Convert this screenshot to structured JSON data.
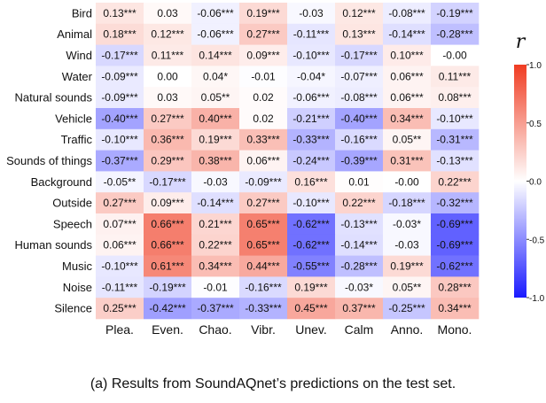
{
  "chart_data": {
    "type": "heatmap",
    "rows": [
      "Bird",
      "Animal",
      "Wind",
      "Water",
      "Natural sounds",
      "Vehicle",
      "Traffic",
      "Sounds of things",
      "Background",
      "Outside",
      "Speech",
      "Human sounds",
      "Music",
      "Noise",
      "Silence"
    ],
    "columns": [
      "Plea.",
      "Even.",
      "Chao.",
      "Vibr.",
      "Unev.",
      "Calm",
      "Anno.",
      "Mono."
    ],
    "values": [
      [
        0.13,
        0.03,
        -0.06,
        0.19,
        -0.03,
        0.12,
        -0.08,
        -0.19
      ],
      [
        0.18,
        0.12,
        -0.06,
        0.27,
        -0.11,
        0.13,
        -0.14,
        -0.28
      ],
      [
        -0.17,
        0.11,
        0.14,
        0.09,
        -0.1,
        -0.17,
        0.1,
        -0.0
      ],
      [
        -0.09,
        0.0,
        0.04,
        -0.01,
        -0.04,
        -0.07,
        0.06,
        0.11
      ],
      [
        -0.09,
        0.03,
        0.05,
        0.02,
        -0.06,
        -0.08,
        0.06,
        0.08
      ],
      [
        -0.4,
        0.27,
        0.4,
        0.02,
        -0.21,
        -0.4,
        0.34,
        -0.1
      ],
      [
        -0.1,
        0.36,
        0.19,
        0.33,
        -0.33,
        -0.16,
        0.05,
        -0.31
      ],
      [
        -0.37,
        0.29,
        0.38,
        0.06,
        -0.24,
        -0.39,
        0.31,
        -0.13
      ],
      [
        -0.05,
        -0.17,
        -0.03,
        -0.09,
        0.16,
        0.01,
        -0.0,
        0.22
      ],
      [
        0.27,
        0.09,
        -0.14,
        0.27,
        -0.1,
        0.22,
        -0.18,
        -0.32
      ],
      [
        0.07,
        0.66,
        0.21,
        0.65,
        -0.62,
        -0.13,
        -0.03,
        -0.69
      ],
      [
        0.06,
        0.66,
        0.22,
        0.65,
        -0.62,
        -0.14,
        -0.03,
        -0.69
      ],
      [
        -0.1,
        0.61,
        0.34,
        0.44,
        -0.55,
        -0.28,
        0.19,
        -0.62
      ],
      [
        -0.11,
        -0.19,
        -0.01,
        -0.16,
        0.19,
        -0.03,
        0.05,
        0.28
      ],
      [
        0.25,
        -0.42,
        -0.37,
        -0.33,
        0.45,
        0.37,
        -0.25,
        0.34
      ]
    ],
    "cell_labels": [
      [
        "0.13***",
        "0.03",
        "-0.06***",
        "0.19***",
        "-0.03",
        "0.12***",
        "-0.08***",
        "-0.19***"
      ],
      [
        "0.18***",
        "0.12***",
        "-0.06***",
        "0.27***",
        "-0.11***",
        "0.13***",
        "-0.14***",
        "-0.28***"
      ],
      [
        "-0.17***",
        "0.11***",
        "0.14***",
        "0.09***",
        "-0.10***",
        "-0.17***",
        "0.10***",
        "-0.00"
      ],
      [
        "-0.09***",
        "0.00",
        "0.04*",
        "-0.01",
        "-0.04*",
        "-0.07***",
        "0.06***",
        "0.11***"
      ],
      [
        "-0.09***",
        "0.03",
        "0.05**",
        "0.02",
        "-0.06***",
        "-0.08***",
        "0.06***",
        "0.08***"
      ],
      [
        "-0.40***",
        "0.27***",
        "0.40***",
        "0.02",
        "-0.21***",
        "-0.40***",
        "0.34***",
        "-0.10***"
      ],
      [
        "-0.10***",
        "0.36***",
        "0.19***",
        "0.33***",
        "-0.33***",
        "-0.16***",
        "0.05**",
        "-0.31***"
      ],
      [
        "-0.37***",
        "0.29***",
        "0.38***",
        "0.06***",
        "-0.24***",
        "-0.39***",
        "0.31***",
        "-0.13***"
      ],
      [
        "-0.05**",
        "-0.17***",
        "-0.03",
        "-0.09***",
        "0.16***",
        "0.01",
        "-0.00",
        "0.22***"
      ],
      [
        "0.27***",
        "0.09***",
        "-0.14***",
        "0.27***",
        "-0.10***",
        "0.22***",
        "-0.18***",
        "-0.32***"
      ],
      [
        "0.07***",
        "0.66***",
        "0.21***",
        "0.65***",
        "-0.62***",
        "-0.13***",
        "-0.03*",
        "-0.69***"
      ],
      [
        "0.06***",
        "0.66***",
        "0.22***",
        "0.65***",
        "-0.62***",
        "-0.14***",
        "-0.03",
        "-0.69***"
      ],
      [
        "-0.10***",
        "0.61***",
        "0.34***",
        "0.44***",
        "-0.55***",
        "-0.28***",
        "0.19***",
        "-0.62***"
      ],
      [
        "-0.11***",
        "-0.19***",
        "-0.01",
        "-0.16***",
        "0.19***",
        "-0.03*",
        "0.05**",
        "0.28***"
      ],
      [
        "0.25***",
        "-0.42***",
        "-0.37***",
        "-0.33***",
        "0.45***",
        "0.37***",
        "-0.25***",
        "0.34***"
      ]
    ],
    "colorbar": {
      "title": "r",
      "range": [
        -1.0,
        1.0
      ],
      "ticks": [
        1.0,
        0.5,
        0.0,
        -0.5,
        -1.0
      ],
      "tick_labels": [
        "1.0",
        "0.5",
        "0.0",
        "-0.5",
        "-1.0"
      ]
    },
    "colormap": {
      "low": "#1a1aff",
      "mid": "#ffffff",
      "high": "#f03c22"
    },
    "caption": "(a) Results from SoundAQnet’s predictions on the test set."
  }
}
